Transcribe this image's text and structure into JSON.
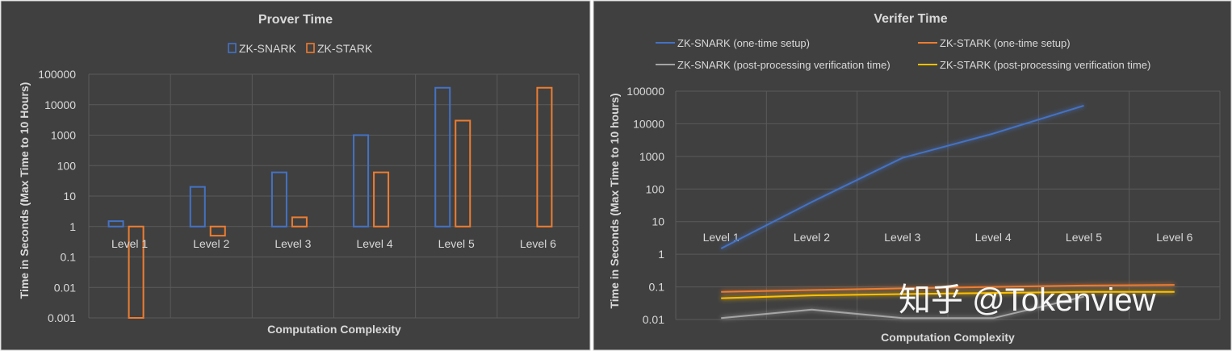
{
  "chart_data": [
    {
      "type": "bar",
      "title": "Prover Time",
      "xlabel": "Computation Complexity",
      "ylabel": "Time in Seconds (Max  Time to 10 Hours)",
      "y_scale": "log",
      "ylim": [
        0.001,
        100000
      ],
      "yticks": [
        "0.001",
        "0.01",
        "0.1",
        "1",
        "10",
        "100",
        "1000",
        "10000",
        "100000"
      ],
      "categories": [
        "Level 1",
        "Level 2",
        "Level 3",
        "Level 4",
        "Level 5",
        "Level 6"
      ],
      "legend_position": "top",
      "grid": true,
      "series": [
        {
          "name": "ZK-SNARK",
          "color": "#4472C4",
          "values": [
            1.5,
            20,
            60,
            1000,
            36000,
            null
          ]
        },
        {
          "name": "ZK-STARK",
          "color": "#ED7D31",
          "values": [
            0.001,
            0.5,
            2,
            60,
            3000,
            36000
          ]
        }
      ]
    },
    {
      "type": "line",
      "title": "Verifer Time",
      "xlabel": "Computation Complexity",
      "ylabel": "Time in Seconds (Max Time  to 10 hours)",
      "y_scale": "log",
      "ylim": [
        0.01,
        100000
      ],
      "yticks": [
        "0.01",
        "0.1",
        "1",
        "10",
        "100",
        "1000",
        "10000",
        "100000"
      ],
      "categories": [
        "Level 1",
        "Level 2",
        "Level 3",
        "Level 4",
        "Level 5",
        "Level 6"
      ],
      "legend_position": "top",
      "grid": true,
      "series": [
        {
          "name": "ZK-SNARK (one-time setup)",
          "color": "#4472C4",
          "values": [
            1.5,
            40,
            900,
            5000,
            36000,
            null
          ]
        },
        {
          "name": "ZK-STARK (one-time setup)",
          "color": "#ED7D31",
          "values": [
            0.07,
            0.08,
            0.09,
            0.1,
            0.11,
            0.115
          ]
        },
        {
          "name": "ZK-SNARK (post-processing verification time)",
          "color": "#A5A5A5",
          "values": [
            0.011,
            0.02,
            0.011,
            0.011,
            0.05,
            null
          ]
        },
        {
          "name": "ZK-STARK (post-processing verification time)",
          "color": "#FFC000",
          "values": [
            0.045,
            0.055,
            0.06,
            0.065,
            0.07,
            0.07
          ]
        }
      ]
    }
  ],
  "watermark": "知乎 @Tokenview"
}
